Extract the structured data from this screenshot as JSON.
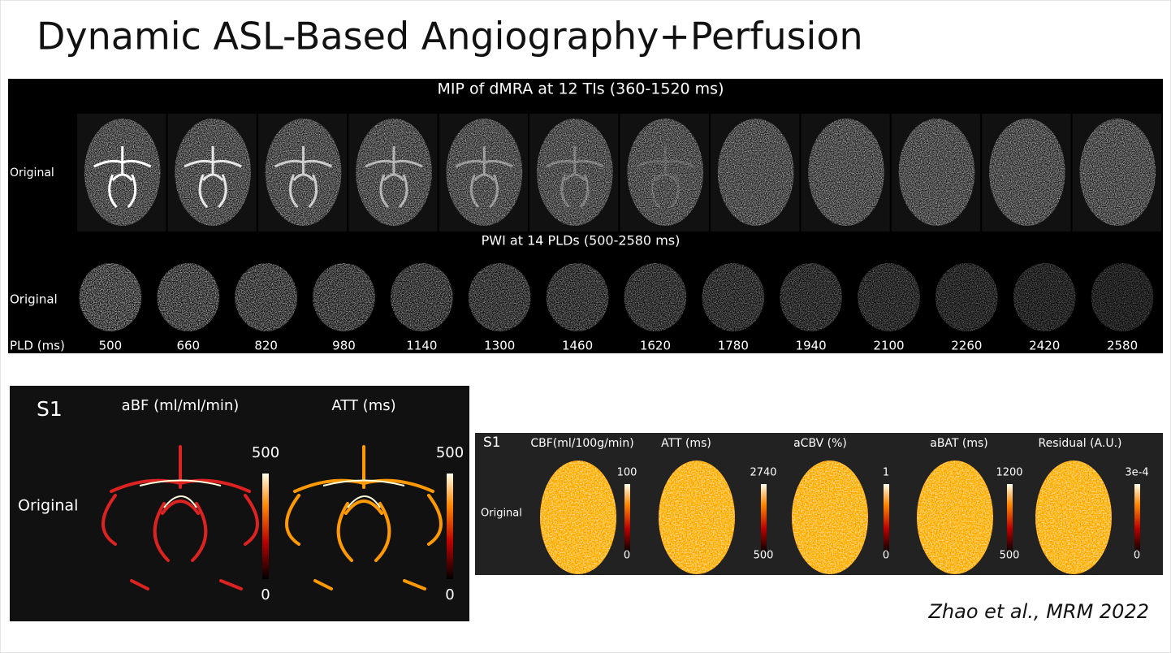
{
  "title": "Dynamic ASL-Based Angiography+Perfusion",
  "dmra_panel": {
    "title": "MIP of dMRA at 12 TIs (360-1520 ms)",
    "row_label": "Original"
  },
  "pwi_panel": {
    "title": "PWI at 14 PLDs (500-2580 ms)",
    "row_label": "Original",
    "axis_label": "PLD (ms)",
    "plds": [
      500,
      660,
      820,
      980,
      1140,
      1300,
      1460,
      1620,
      1780,
      1940,
      2100,
      2260,
      2420,
      2580
    ]
  },
  "angio_maps": {
    "subject": "S1",
    "row_label": "Original",
    "maps": [
      {
        "title": "aBF (ml/ml/min)",
        "max": "500",
        "min": "0"
      },
      {
        "title": "ATT (ms)",
        "max": "500",
        "min": "0"
      }
    ]
  },
  "perfusion_maps": {
    "subject": "S1",
    "row_label": "Original",
    "maps": [
      {
        "title": "CBF(ml/100g/min)",
        "max": "100",
        "min": "0"
      },
      {
        "title": "ATT (ms)",
        "max": "2740",
        "min": "500"
      },
      {
        "title": "aCBV (%)",
        "max": "1",
        "min": "0"
      },
      {
        "title": "aBAT (ms)",
        "max": "1200",
        "min": "500"
      },
      {
        "title": "Residual (A.U.)",
        "max": "3e-4",
        "min": "0"
      }
    ]
  },
  "citation": "Zhao et al., MRM 2022"
}
